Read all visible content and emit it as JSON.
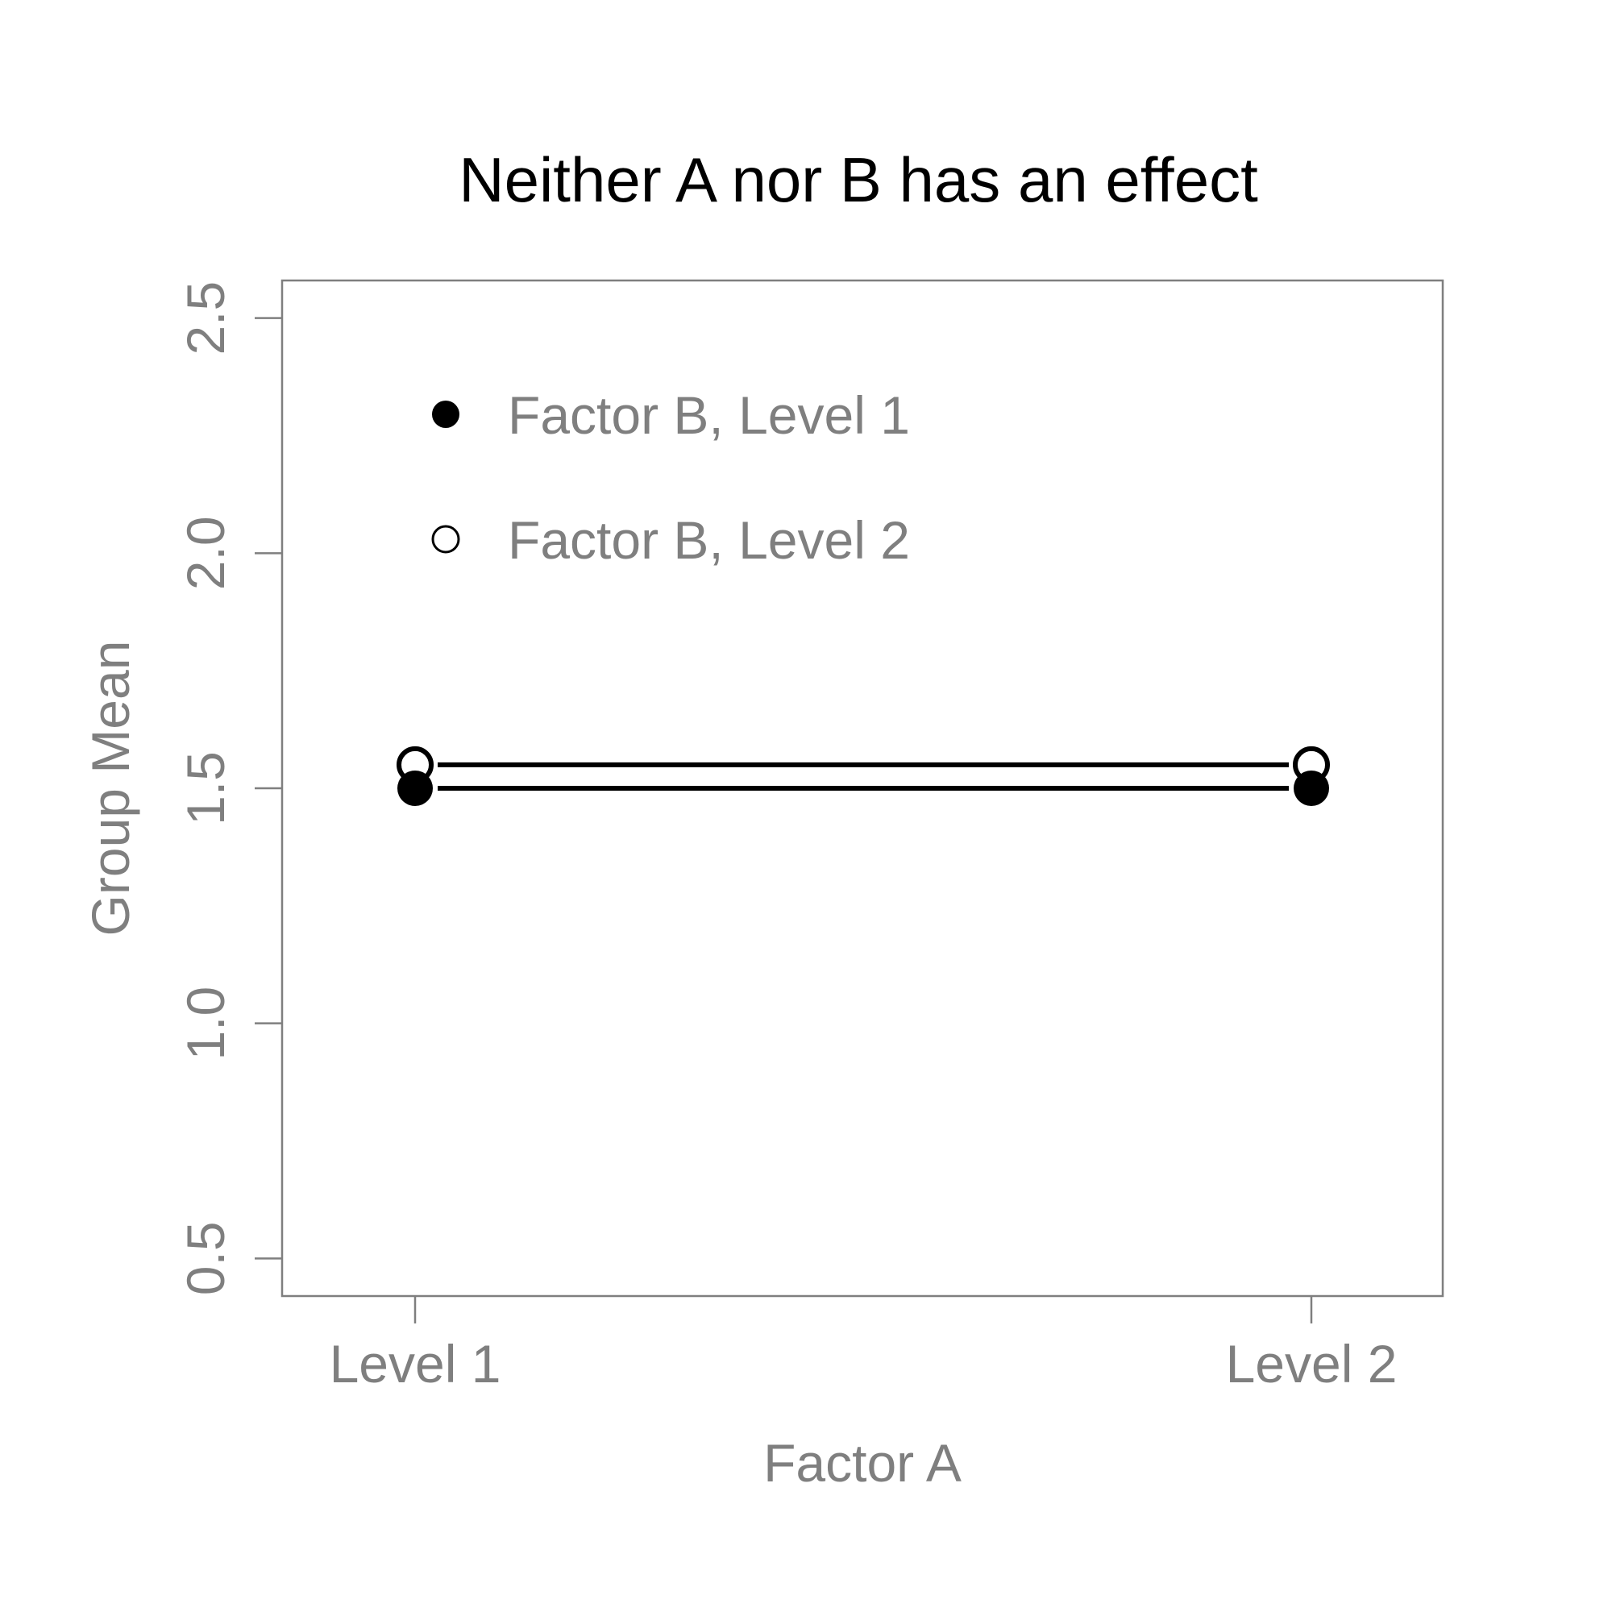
{
  "chart_data": {
    "type": "line",
    "title": "Neither A nor B has an effect",
    "xlabel": "Factor A",
    "ylabel": "Group Mean",
    "categories": [
      "Level 1",
      "Level 2"
    ],
    "yticks": [
      "0.5",
      "1.0",
      "1.5",
      "2.0",
      "2.5"
    ],
    "ylim": [
      0.42,
      2.58
    ],
    "grid": false,
    "legend_position": "top-left",
    "series": [
      {
        "name": "Factor B, Level 1",
        "marker": "filled-circle",
        "values": [
          1.5,
          1.5
        ],
        "color": "#000000"
      },
      {
        "name": "Factor B, Level 2",
        "marker": "open-circle",
        "values": [
          1.55,
          1.55
        ],
        "color": "#000000"
      }
    ],
    "colors": {
      "text": "#7f7f7f",
      "title": "#000000",
      "frame": "#7f7f7f"
    }
  }
}
